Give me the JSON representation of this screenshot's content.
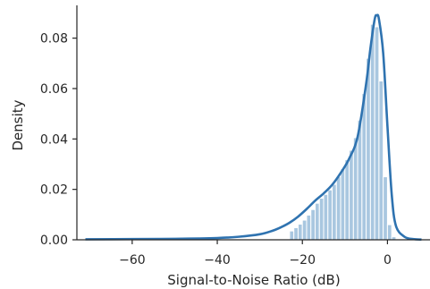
{
  "chart_data": {
    "type": "area",
    "title": "",
    "xlabel": "Signal-to-Noise Ratio (dB)",
    "ylabel": "Density",
    "xlim": [
      -73,
      10
    ],
    "ylim": [
      0,
      0.093
    ],
    "xticks": [
      -60,
      -40,
      -20,
      0
    ],
    "xtick_labels": [
      "−60",
      "−40",
      "−20",
      "0"
    ],
    "yticks": [
      0.0,
      0.02,
      0.04,
      0.06,
      0.08
    ],
    "ytick_labels": [
      "0.00",
      "0.02",
      "0.04",
      "0.06",
      "0.08"
    ],
    "grid": false,
    "legend": "none",
    "colors": {
      "hist_fill": "#a9c7e0",
      "hist_edge": "#ffffff",
      "kde_line": "#2f73b0",
      "axis": "#262626"
    },
    "histogram": {
      "bin_edges": [
        -23,
        -22,
        -21,
        -20,
        -19,
        -18,
        -17,
        -16,
        -15,
        -14,
        -13,
        -12,
        -11,
        -10,
        -9,
        -8,
        -7,
        -6,
        -5,
        -4,
        -3,
        -2,
        -1,
        0,
        1,
        2
      ],
      "densities": [
        0.0035,
        0.0048,
        0.0062,
        0.0078,
        0.0098,
        0.012,
        0.0145,
        0.0165,
        0.018,
        0.0198,
        0.022,
        0.025,
        0.0282,
        0.0318,
        0.0355,
        0.0405,
        0.0475,
        0.058,
        0.072,
        0.0855,
        0.0845,
        0.063,
        0.025,
        0.006,
        0.0012
      ]
    },
    "kde": {
      "x": [
        -71,
        -60,
        -50,
        -40,
        -35,
        -30,
        -27,
        -25,
        -23,
        -21,
        -19,
        -17,
        -15,
        -13,
        -11,
        -9,
        -7,
        -5,
        -4,
        -3,
        -2.5,
        -2,
        -1,
        0,
        1,
        2,
        4,
        6,
        8
      ],
      "y": [
        0.0002,
        0.0003,
        0.0004,
        0.0007,
        0.0012,
        0.0022,
        0.0036,
        0.005,
        0.0068,
        0.0092,
        0.0122,
        0.0155,
        0.0184,
        0.0218,
        0.0265,
        0.0322,
        0.041,
        0.062,
        0.076,
        0.0875,
        0.089,
        0.0875,
        0.074,
        0.045,
        0.018,
        0.0055,
        0.0012,
        0.0003,
        0.0001
      ]
    }
  }
}
